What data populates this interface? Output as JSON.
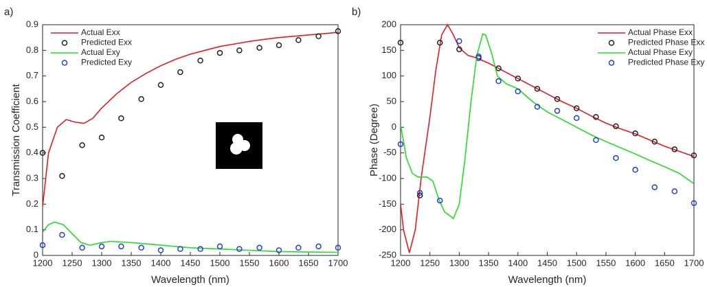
{
  "chart_data": [
    {
      "type": "line",
      "label": "a)",
      "xlabel": "Wavelength (nm)",
      "ylabel": "Transmission Coefficient",
      "xlim": [
        1200,
        1700
      ],
      "ylim": [
        0,
        0.9
      ],
      "xticks": [
        1200,
        1250,
        1300,
        1350,
        1400,
        1450,
        1500,
        1550,
        1600,
        1650,
        1700
      ],
      "yticks": [
        0,
        0.1,
        0.2,
        0.3,
        0.4,
        0.5,
        0.6,
        0.7,
        0.8,
        0.9
      ],
      "legend": "upper left",
      "series": [
        {
          "name": "Actual Exx",
          "color": "#e8191e",
          "mode": "line",
          "x": [
            1200,
            1210,
            1225,
            1240,
            1255,
            1270,
            1285,
            1300,
            1325,
            1350,
            1375,
            1400,
            1425,
            1450,
            1475,
            1500,
            1525,
            1550,
            1575,
            1600,
            1625,
            1650,
            1675,
            1700
          ],
          "values": [
            0.19,
            0.4,
            0.5,
            0.53,
            0.52,
            0.515,
            0.535,
            0.575,
            0.63,
            0.675,
            0.71,
            0.74,
            0.765,
            0.785,
            0.8,
            0.815,
            0.825,
            0.835,
            0.843,
            0.85,
            0.855,
            0.86,
            0.865,
            0.87
          ]
        },
        {
          "name": "Predicted Exx",
          "color": "#222222",
          "mode": "markers",
          "x": [
            1200,
            1233,
            1267,
            1300,
            1333,
            1367,
            1400,
            1433,
            1467,
            1500,
            1533,
            1567,
            1600,
            1633,
            1667,
            1700
          ],
          "values": [
            0.4,
            0.31,
            0.43,
            0.46,
            0.535,
            0.61,
            0.665,
            0.715,
            0.76,
            0.79,
            0.8,
            0.81,
            0.82,
            0.84,
            0.855,
            0.875
          ]
        },
        {
          "name": "Actual Exy",
          "color": "#22dd22",
          "mode": "line",
          "x": [
            1200,
            1210,
            1220,
            1235,
            1250,
            1265,
            1280,
            1300,
            1315,
            1350,
            1400,
            1450,
            1500,
            1550,
            1600,
            1650,
            1700
          ],
          "values": [
            0.09,
            0.12,
            0.13,
            0.12,
            0.085,
            0.05,
            0.04,
            0.05,
            0.055,
            0.05,
            0.04,
            0.03,
            0.025,
            0.02,
            0.015,
            0.013,
            0.012
          ]
        },
        {
          "name": "Predicted Exy",
          "color": "#1f3fe0",
          "mode": "markers",
          "x": [
            1200,
            1233,
            1267,
            1300,
            1333,
            1367,
            1400,
            1433,
            1467,
            1500,
            1533,
            1567,
            1600,
            1633,
            1667,
            1700
          ],
          "values": [
            0.04,
            0.08,
            0.03,
            0.035,
            0.035,
            0.03,
            0.02,
            0.025,
            0.025,
            0.035,
            0.025,
            0.03,
            0.02,
            0.03,
            0.035,
            0.03
          ]
        }
      ]
    },
    {
      "type": "line",
      "label": "b)",
      "xlabel": "Wavelength (nm)",
      "ylabel": "Phase (Degree)",
      "xlim": [
        1200,
        1700
      ],
      "ylim": [
        -250,
        200
      ],
      "xticks": [
        1200,
        1250,
        1300,
        1350,
        1400,
        1450,
        1500,
        1550,
        1600,
        1650,
        1700
      ],
      "yticks": [
        -250,
        -200,
        -150,
        -100,
        -50,
        0,
        50,
        100,
        150,
        200
      ],
      "legend": "upper right",
      "series": [
        {
          "name": "Actual Phase Exx",
          "color": "#e8191e",
          "mode": "line",
          "x": [
            1200,
            1205,
            1215,
            1225,
            1235,
            1250,
            1260,
            1270,
            1280,
            1290,
            1300,
            1315,
            1330,
            1350,
            1375,
            1400,
            1425,
            1450,
            1475,
            1500,
            1525,
            1550,
            1575,
            1600,
            1625,
            1650,
            1675,
            1700
          ],
          "values": [
            -150,
            -200,
            -245,
            -200,
            -100,
            20,
            110,
            180,
            200,
            180,
            155,
            140,
            135,
            125,
            110,
            95,
            80,
            65,
            50,
            37,
            22,
            8,
            -3,
            -13,
            -25,
            -37,
            -47,
            -57
          ]
        },
        {
          "name": "Predicted Phase Exx",
          "color": "#222222",
          "mode": "markers",
          "x": [
            1200,
            1233,
            1267,
            1300,
            1333,
            1367,
            1400,
            1433,
            1467,
            1500,
            1533,
            1567,
            1600,
            1633,
            1667,
            1700
          ],
          "values": [
            165,
            -133,
            165,
            152,
            135,
            115,
            95,
            75,
            55,
            37,
            20,
            2,
            -12,
            -28,
            -43,
            -55
          ]
        },
        {
          "name": "Actual Phase Exy",
          "color": "#22dd22",
          "mode": "line",
          "x": [
            1200,
            1210,
            1220,
            1230,
            1245,
            1255,
            1265,
            1275,
            1290,
            1300,
            1310,
            1320,
            1330,
            1340,
            1345,
            1355,
            1365,
            1380,
            1400,
            1425,
            1450,
            1475,
            1500,
            1525,
            1550,
            1575,
            1600,
            1625,
            1650,
            1675,
            1700
          ],
          "values": [
            5,
            -60,
            -90,
            -97,
            -97,
            -105,
            -140,
            -165,
            -178,
            -150,
            -60,
            50,
            140,
            182,
            180,
            145,
            100,
            85,
            75,
            50,
            30,
            15,
            0,
            -15,
            -28,
            -40,
            -52,
            -65,
            -77,
            -90,
            -110
          ]
        },
        {
          "name": "Predicted Phase Exy",
          "color": "#1f3fe0",
          "mode": "markers",
          "x": [
            1200,
            1233,
            1267,
            1300,
            1333,
            1367,
            1400,
            1433,
            1467,
            1500,
            1533,
            1567,
            1600,
            1633,
            1667,
            1700
          ],
          "values": [
            -33,
            -128,
            -143,
            168,
            138,
            90,
            70,
            40,
            32,
            18,
            -25,
            -60,
            -83,
            -117,
            -125,
            -148
          ]
        }
      ]
    }
  ]
}
